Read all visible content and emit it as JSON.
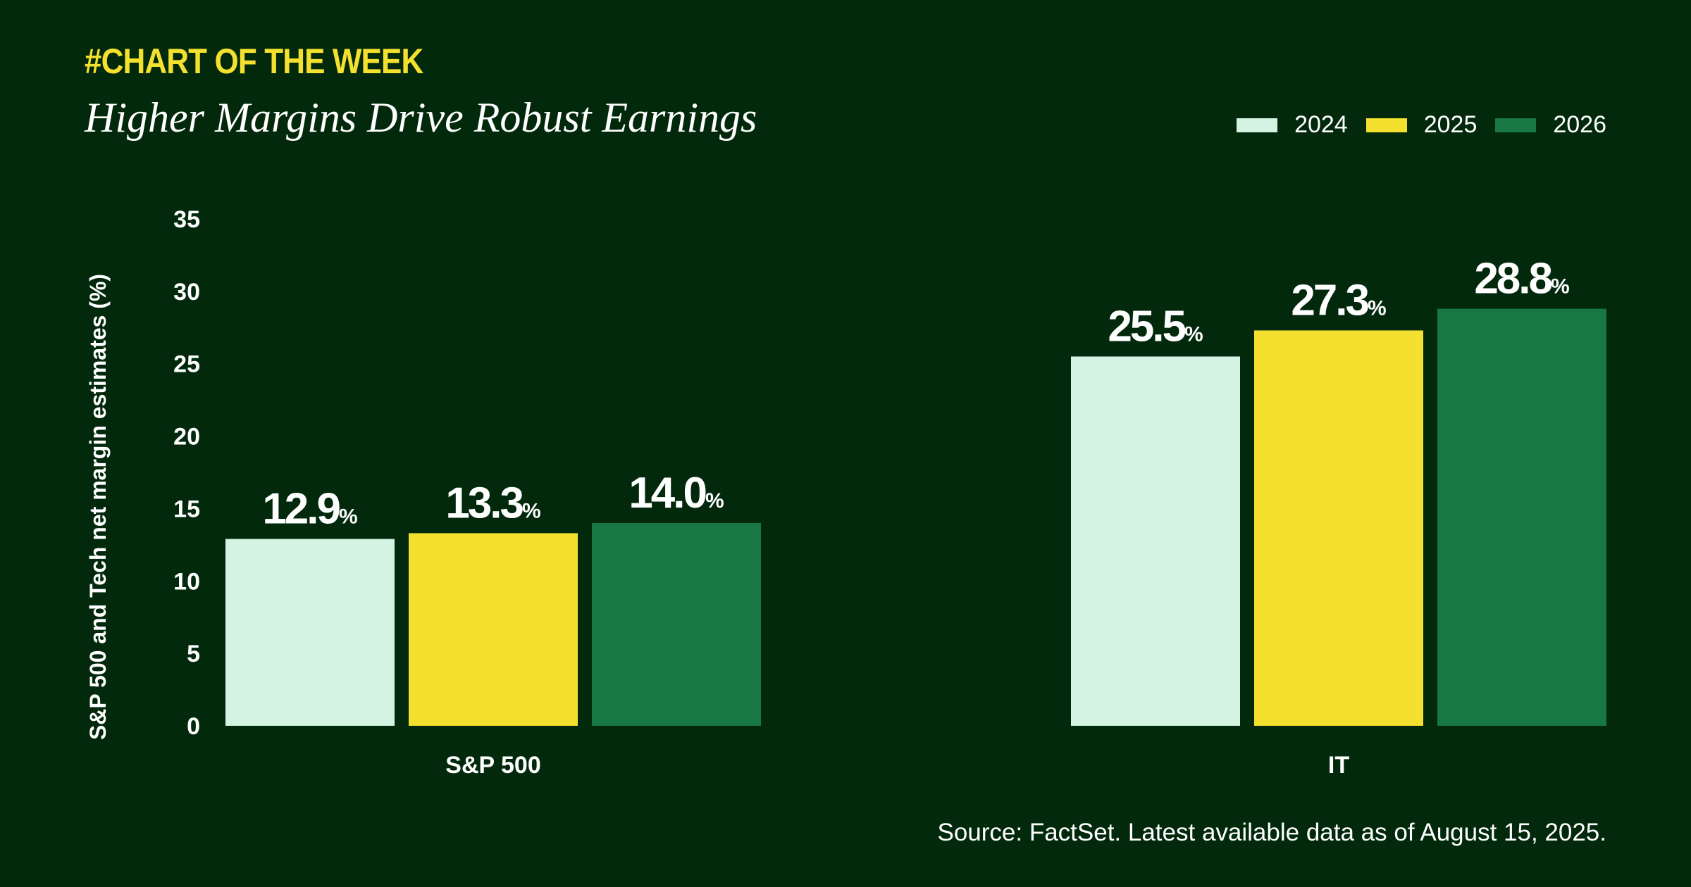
{
  "header": {
    "kicker": "#CHART OF THE WEEK",
    "title": "Higher Margins Drive Robust Earnings"
  },
  "footer": {
    "source": "Source: FactSet. Latest available data as of August 15, 2025."
  },
  "colors": {
    "background": "#02290c",
    "accent": "#f4e02e",
    "series_2024": "#d4f3e2",
    "series_2025": "#f4e02e",
    "series_2026": "#187843"
  },
  "chart_data": {
    "type": "bar",
    "categories": [
      "S&P 500",
      "IT"
    ],
    "series": [
      {
        "name": "2024",
        "values": [
          12.9,
          25.5
        ],
        "labels": [
          "12.9",
          "25.5"
        ]
      },
      {
        "name": "2025",
        "values": [
          13.3,
          27.3
        ],
        "labels": [
          "13.3",
          "27.3"
        ]
      },
      {
        "name": "2026",
        "values": [
          14.0,
          28.8
        ],
        "labels": [
          "14.0",
          "28.8"
        ]
      }
    ],
    "value_suffix": "%",
    "ylabel": "S&P 500 and Tech net margin estimates (%)",
    "yticks": [
      "0",
      "5",
      "10",
      "15",
      "20",
      "25",
      "30",
      "35"
    ],
    "ylim": [
      0,
      35
    ],
    "grid": false,
    "legend_position": "top-right"
  }
}
